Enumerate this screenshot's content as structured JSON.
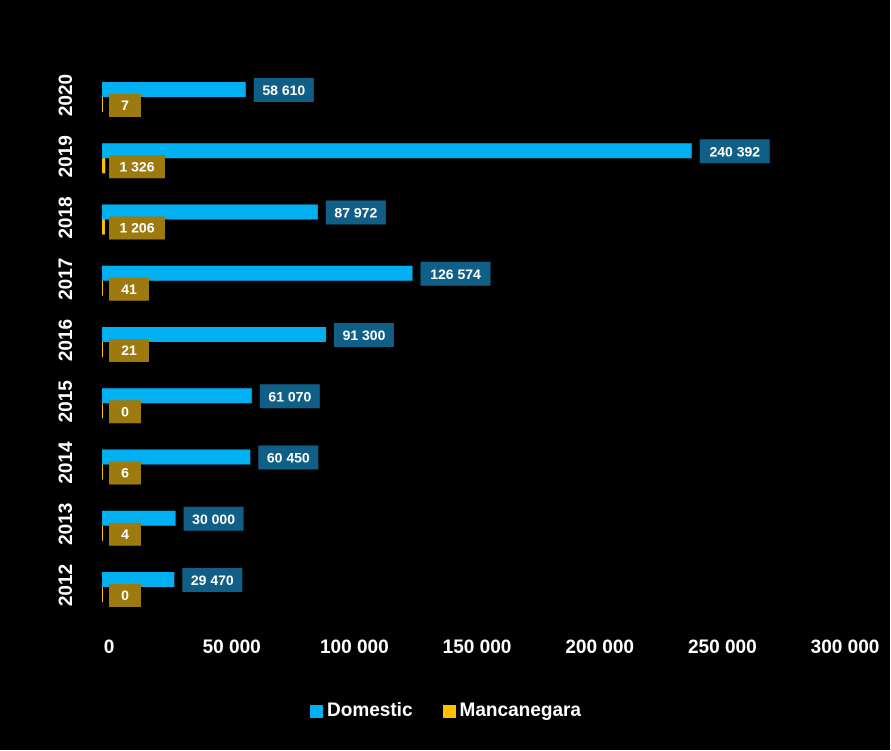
{
  "chart_data": {
    "type": "bar",
    "orientation": "horizontal",
    "title": "",
    "xlabel": "",
    "ylabel": "",
    "categories": [
      "2012",
      "2013",
      "2014",
      "2015",
      "2016",
      "2017",
      "2018",
      "2019",
      "2020"
    ],
    "series": [
      {
        "name": "Domestic",
        "color": "#00b0f0",
        "label_bg": "#0f5f86",
        "values": [
          29470,
          30000,
          60450,
          61070,
          91300,
          126574,
          87972,
          240392,
          58610
        ],
        "labels": [
          "29 470",
          "30 000",
          "60 450",
          "61 070",
          "91 300",
          "126 574",
          "87 972",
          "240 392",
          "58 610"
        ]
      },
      {
        "name": "Mancanegara",
        "color": "#ffc000",
        "label_bg": "#9c7a0e",
        "values": [
          0,
          4,
          6,
          0,
          21,
          41,
          1206,
          1326,
          7
        ],
        "labels": [
          "0",
          "4",
          "6",
          "0",
          "21",
          "41",
          "1 206",
          "1 326",
          "7"
        ]
      }
    ],
    "xlim": [
      0,
      300000
    ],
    "xticks": [
      "0",
      "50 000",
      "100 000",
      "150 000",
      "200 000",
      "250 000",
      "300 000"
    ],
    "grid": false,
    "legend_position": "bottom"
  }
}
